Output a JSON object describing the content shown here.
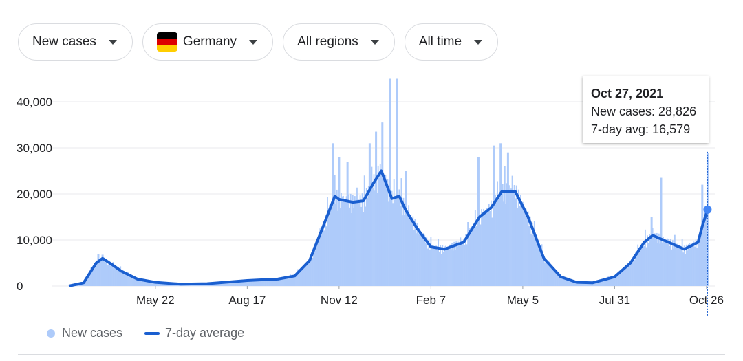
{
  "filters": {
    "metric": "New cases",
    "country": "Germany",
    "region": "All regions",
    "time_range": "All time",
    "flag_colors": [
      "#000000",
      "#dd0000",
      "#ffce00"
    ]
  },
  "tooltip": {
    "date": "Oct 27, 2021",
    "new_cases": "New cases: 28,826",
    "avg": "7-day avg: 16,579"
  },
  "legend": {
    "bars_label": "New cases",
    "line_label": "7-day average"
  },
  "colors": {
    "bars": "#aecbfa",
    "line": "#1a5fd0",
    "grid": "#e8eaed",
    "axis_text": "#202124"
  },
  "chart_data": {
    "type": "bar",
    "ylim": [
      0,
      40000
    ],
    "yticks": [
      0,
      10000,
      20000,
      30000,
      40000
    ],
    "ytick_labels": [
      "0",
      "10,000",
      "20,000",
      "30,000",
      "40,000"
    ],
    "xtick_labels": [
      "May 22",
      "Aug 17",
      "Nov 12",
      "Feb 7",
      "May 5",
      "Jul 31",
      "Oct 26"
    ],
    "series": [
      {
        "name": "7-day average",
        "type": "line",
        "points": [
          [
            "2020-03-01",
            0
          ],
          [
            "2020-03-15",
            700
          ],
          [
            "2020-03-27",
            5000
          ],
          [
            "2020-04-02",
            6000
          ],
          [
            "2020-04-10",
            4800
          ],
          [
            "2020-04-20",
            3200
          ],
          [
            "2020-05-05",
            1500
          ],
          [
            "2020-05-22",
            800
          ],
          [
            "2020-06-15",
            400
          ],
          [
            "2020-07-10",
            500
          ],
          [
            "2020-08-17",
            1200
          ],
          [
            "2020-09-15",
            1500
          ],
          [
            "2020-10-01",
            2200
          ],
          [
            "2020-10-15",
            5500
          ],
          [
            "2020-10-28",
            13000
          ],
          [
            "2020-11-08",
            19500
          ],
          [
            "2020-11-12",
            18800
          ],
          [
            "2020-11-25",
            18200
          ],
          [
            "2020-12-05",
            18500
          ],
          [
            "2020-12-15",
            22500
          ],
          [
            "2020-12-22",
            25000
          ],
          [
            "2021-01-01",
            19000
          ],
          [
            "2021-01-08",
            19500
          ],
          [
            "2021-01-14",
            16500
          ],
          [
            "2021-01-25",
            12500
          ],
          [
            "2021-02-07",
            8500
          ],
          [
            "2021-02-20",
            8000
          ],
          [
            "2021-03-10",
            9500
          ],
          [
            "2021-03-25",
            15000
          ],
          [
            "2021-04-05",
            17000
          ],
          [
            "2021-04-15",
            20500
          ],
          [
            "2021-04-28",
            20500
          ],
          [
            "2021-05-10",
            15000
          ],
          [
            "2021-05-25",
            6000
          ],
          [
            "2021-06-10",
            2000
          ],
          [
            "2021-06-25",
            800
          ],
          [
            "2021-07-10",
            700
          ],
          [
            "2021-07-31",
            2000
          ],
          [
            "2021-08-15",
            5000
          ],
          [
            "2021-08-28",
            9500
          ],
          [
            "2021-09-05",
            11000
          ],
          [
            "2021-09-20",
            9500
          ],
          [
            "2021-10-05",
            8000
          ],
          [
            "2021-10-18",
            9500
          ],
          [
            "2021-10-22",
            13000
          ],
          [
            "2021-10-27",
            16579
          ]
        ]
      },
      {
        "name": "New cases",
        "type": "bar",
        "points": [
          [
            "2020-03-29",
            7000
          ],
          [
            "2020-04-02",
            6800
          ],
          [
            "2020-11-06",
            31000
          ],
          [
            "2020-11-12",
            28000
          ],
          [
            "2020-11-20",
            27000
          ],
          [
            "2020-12-11",
            31000
          ],
          [
            "2020-12-17",
            33500
          ],
          [
            "2020-12-23",
            35500
          ],
          [
            "2020-12-30",
            45000
          ],
          [
            "2021-01-06",
            45000
          ],
          [
            "2021-01-14",
            25000
          ],
          [
            "2021-03-24",
            28000
          ],
          [
            "2021-04-08",
            30500
          ],
          [
            "2021-04-14",
            31000
          ],
          [
            "2021-04-21",
            29000
          ],
          [
            "2021-09-04",
            15000
          ],
          [
            "2021-09-13",
            23500
          ],
          [
            "2021-10-22",
            22000
          ],
          [
            "2021-10-27",
            28826
          ]
        ]
      }
    ]
  }
}
